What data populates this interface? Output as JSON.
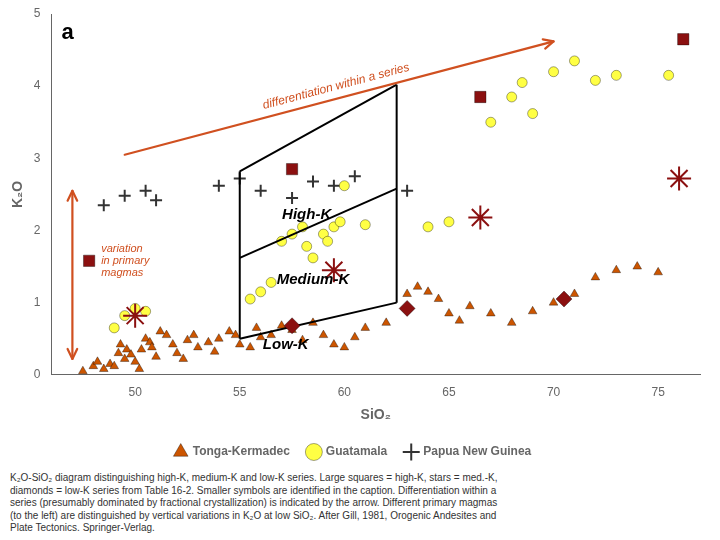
{
  "chart_data": {
    "type": "scatter",
    "x_label": "SiO₂",
    "y_label": "K₂O",
    "xlim": [
      46,
      77
    ],
    "xticks": [
      50,
      55,
      60,
      65,
      70,
      75
    ],
    "ylim": [
      0,
      5
    ],
    "yticks": [
      0,
      1,
      2,
      3,
      4,
      5
    ],
    "grid": false,
    "legend": "bottom",
    "series": [
      {
        "name": "Tonga-Kermadec",
        "color": "#cc5500",
        "marker": "triangle",
        "x": [
          47.5,
          48.0,
          48.2,
          48.5,
          48.8,
          49.0,
          49.2,
          49.3,
          49.5,
          49.6,
          49.8,
          50.0,
          50.2,
          50.3,
          50.5,
          50.7,
          50.8,
          51.0,
          51.2,
          51.5,
          51.8,
          52.0,
          52.3,
          52.5,
          52.8,
          53.0,
          53.5,
          53.8,
          54.0,
          54.5,
          54.8,
          55.0,
          55.5,
          55.8,
          56.0,
          56.5,
          57.0,
          57.5,
          58.0,
          58.5,
          59.0,
          59.5,
          60.0,
          60.5,
          61.0,
          62.0,
          63.0,
          63.5,
          64.0,
          64.5,
          65.0,
          65.5,
          66.0,
          67.0,
          68.0,
          69.0,
          70.0,
          71.0,
          72.0,
          73.0,
          74.0,
          75.0
        ],
        "values": [
          0.05,
          0.12,
          0.18,
          0.08,
          0.15,
          0.12,
          0.3,
          0.42,
          0.22,
          0.35,
          0.28,
          0.18,
          0.08,
          0.35,
          0.5,
          0.45,
          0.38,
          0.25,
          0.6,
          0.55,
          0.42,
          0.3,
          0.22,
          0.48,
          0.55,
          0.38,
          0.45,
          0.32,
          0.5,
          0.6,
          0.55,
          0.42,
          0.38,
          0.65,
          0.52,
          0.55,
          0.68,
          0.62,
          0.48,
          0.72,
          0.55,
          0.42,
          0.38,
          0.52,
          0.65,
          0.72,
          1.12,
          1.22,
          1.15,
          1.05,
          0.85,
          0.75,
          0.95,
          0.85,
          0.72,
          0.88,
          1.0,
          1.12,
          1.35,
          1.45,
          1.5,
          1.42
        ]
      },
      {
        "name": "Guatamala",
        "color": "#ffff44",
        "marker": "circle",
        "x": [
          49.0,
          49.5,
          50.0,
          50.5,
          55.5,
          56.0,
          56.5,
          57.0,
          57.5,
          58.0,
          58.2,
          58.5,
          59.0,
          59.2,
          59.5,
          59.8,
          60.0,
          61.0,
          64.0,
          65.0,
          67.0,
          68.0,
          68.5,
          69.0,
          70.0,
          71.0,
          72.0,
          73.0,
          75.5
        ],
        "values": [
          0.65,
          0.82,
          0.92,
          0.88,
          1.05,
          1.15,
          1.28,
          1.85,
          1.95,
          2.05,
          1.78,
          1.62,
          1.95,
          1.85,
          2.05,
          2.12,
          2.62,
          2.08,
          2.05,
          2.12,
          3.5,
          3.85,
          4.05,
          3.62,
          4.2,
          4.35,
          4.08,
          4.15,
          4.15
        ]
      },
      {
        "name": "Papua New Guinea",
        "color": "#333333",
        "marker": "plus",
        "x": [
          48.5,
          49.5,
          50.5,
          51.0,
          54.0,
          55.0,
          56.0,
          57.5,
          58.5,
          59.5,
          60.5,
          63.0
        ],
        "values": [
          2.35,
          2.48,
          2.55,
          2.42,
          2.62,
          2.72,
          2.55,
          2.45,
          2.68,
          2.62,
          2.75,
          2.55
        ]
      },
      {
        "color": "#8b1010",
        "marker": "square",
        "x": [
          57.5,
          66.5,
          76.2
        ],
        "values": [
          2.85,
          3.85,
          4.65
        ]
      },
      {
        "color": "#8b1010",
        "marker": "star",
        "x": [
          50.0,
          59.5,
          66.5,
          76.0
        ],
        "values": [
          0.82,
          1.45,
          2.18,
          2.72
        ]
      },
      {
        "color": "#8b1010",
        "marker": "diamond",
        "x": [
          57.5,
          63.0,
          70.5
        ],
        "values": [
          0.68,
          0.92,
          1.05
        ]
      },
      {
        "color": "#8b1010",
        "marker": "square",
        "x": [
          47.8
        ],
        "values": [
          1.58
        ]
      }
    ],
    "boundary_lines": {
      "color": "#000000",
      "segments": [
        [
          [
            55.0,
            0.5
          ],
          [
            62.5,
            1.0
          ]
        ],
        [
          [
            55.0,
            1.62
          ],
          [
            62.5,
            2.58
          ]
        ],
        [
          [
            55.0,
            2.82
          ],
          [
            62.5,
            4.02
          ]
        ],
        [
          [
            55.0,
            0.5
          ],
          [
            55.0,
            1.62
          ]
        ],
        [
          [
            55.0,
            1.62
          ],
          [
            55.0,
            2.82
          ]
        ],
        [
          [
            62.5,
            1.0
          ],
          [
            62.5,
            4.02
          ]
        ]
      ]
    },
    "annotations": [
      {
        "type": "arrow",
        "from": [
          49.5,
          3.05
        ],
        "to": [
          70.0,
          4.62
        ],
        "text": "differentiation within a series",
        "color": "#d05020"
      },
      {
        "type": "double_arrow",
        "from": [
          47.0,
          0.22
        ],
        "to": [
          47.0,
          2.55
        ],
        "color": "#d05020"
      },
      {
        "type": "text",
        "text": "variation\nin primary\nmagmas",
        "x": 47.8,
        "y": 1.58,
        "color": "#d05020"
      },
      {
        "type": "zone_label",
        "text": "High-K",
        "x": 58.2,
        "y": 2.22
      },
      {
        "type": "zone_label",
        "text": "Medium-K",
        "x": 58.5,
        "y": 1.32
      },
      {
        "type": "zone_label",
        "text": "Low-K",
        "x": 57.2,
        "y": 0.42
      }
    ],
    "panel_label": "a",
    "caption": "K₂O-SiO₂ diagram distinguishing high-K, medium-K and low-K series. Large squares = high-K, stars = med.-K,\ndiamonds = low-K series from Table 16-2. Smaller symbols are identified in the caption. Differentiation within a\nseries (presumably dominated by fractional crystallization) is indicated by the arrow. Different primary magmas\n(to the left) are distinguished by vertical variations in K₂O at low SiO₂. After Gill, 1981, Orogenic Andesites and\nPlate Tectonics. Springer-Verlag."
  }
}
